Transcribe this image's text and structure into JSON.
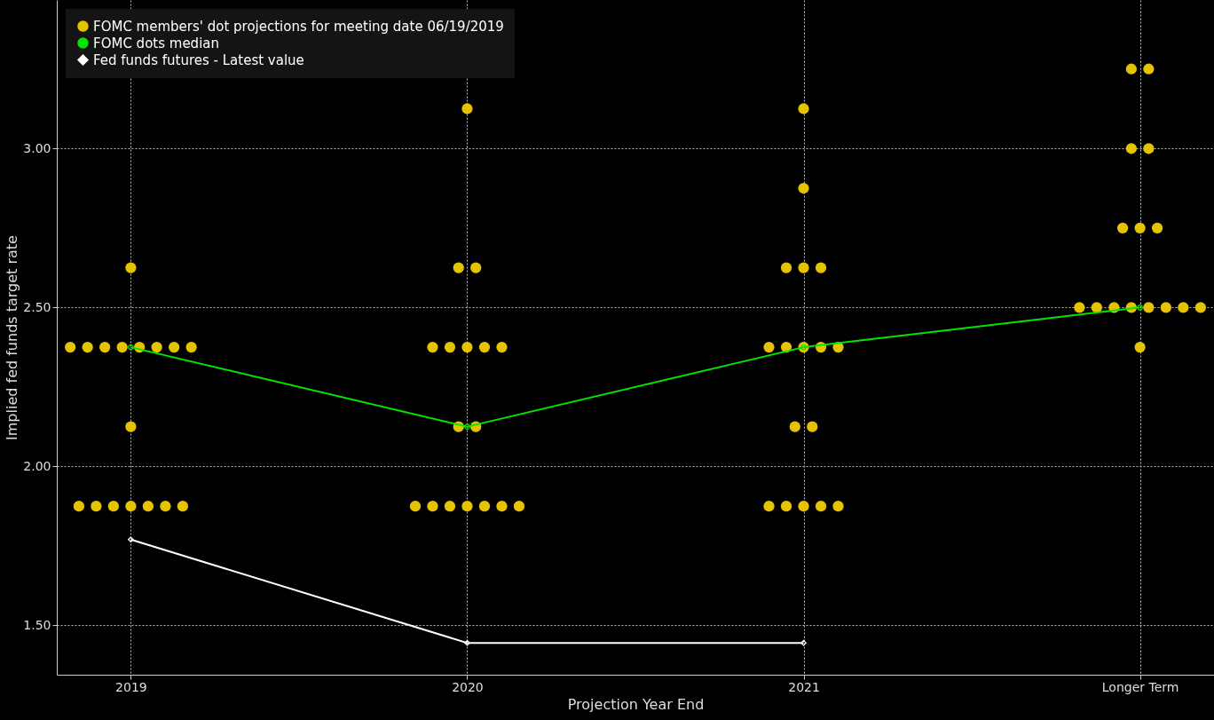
{
  "chart_data": {
    "type": "scatter",
    "xlabel": "Projection Year End",
    "ylabel": "Implied fed funds target rate",
    "categories": [
      "2019",
      "2020",
      "2021",
      "Longer Term"
    ],
    "ylim": [
      1.345,
      3.467
    ],
    "yticks": [
      {
        "value": 1.5,
        "label": "1.50"
      },
      {
        "value": 2,
        "label": "2.00"
      },
      {
        "value": 2.5,
        "label": "2.50"
      },
      {
        "value": 3,
        "label": "3.00"
      }
    ],
    "grid": true,
    "legend": "top left",
    "series": [
      {
        "name": "FOMC members' dot projections for meeting date 06/19/2019",
        "type": "scatter",
        "marker": "circle",
        "color": "#e6c300",
        "values": [
          2.625,
          3.125,
          3.125,
          3.25
        ]
      },
      {
        "type": "scatter",
        "marker": "circle",
        "color": "#e6c300",
        "values": [
          2.375,
          2.625,
          2.875,
          3.25
        ]
      },
      {
        "type": "scatter",
        "marker": "circle",
        "color": "#e6c300",
        "values": [
          2.375,
          2.625,
          2.625,
          3.0
        ]
      },
      {
        "type": "scatter",
        "marker": "circle",
        "color": "#e6c300",
        "values": [
          2.375,
          2.375,
          2.625,
          3.0
        ]
      },
      {
        "type": "scatter",
        "marker": "circle",
        "color": "#e6c300",
        "values": [
          2.375,
          2.375,
          2.625,
          2.75
        ]
      },
      {
        "type": "scatter",
        "marker": "circle",
        "color": "#e6c300",
        "values": [
          2.375,
          2.375,
          2.375,
          2.75
        ]
      },
      {
        "type": "scatter",
        "marker": "circle",
        "color": "#e6c300",
        "values": [
          2.375,
          2.375,
          2.375,
          2.75
        ]
      },
      {
        "type": "scatter",
        "marker": "circle",
        "color": "#e6c300",
        "values": [
          2.375,
          2.375,
          2.375,
          2.5
        ]
      },
      {
        "type": "scatter",
        "marker": "circle",
        "color": "#e6c300",
        "values": [
          2.375,
          2.125,
          2.375,
          2.5
        ]
      },
      {
        "type": "scatter",
        "marker": "circle",
        "color": "#e6c300",
        "values": [
          2.125,
          2.125,
          2.375,
          2.5
        ]
      },
      {
        "type": "scatter",
        "marker": "circle",
        "color": "#e6c300",
        "values": [
          1.875,
          1.875,
          2.125,
          2.5
        ]
      },
      {
        "type": "scatter",
        "marker": "circle",
        "color": "#e6c300",
        "values": [
          1.875,
          1.875,
          2.125,
          2.5
        ]
      },
      {
        "type": "scatter",
        "marker": "circle",
        "color": "#e6c300",
        "values": [
          1.875,
          1.875,
          1.875,
          2.5
        ]
      },
      {
        "type": "scatter",
        "marker": "circle",
        "color": "#e6c300",
        "values": [
          1.875,
          1.875,
          1.875,
          2.5
        ]
      },
      {
        "type": "scatter",
        "marker": "circle",
        "color": "#e6c300",
        "values": [
          1.875,
          1.875,
          1.875,
          2.5
        ]
      },
      {
        "type": "scatter",
        "marker": "circle",
        "color": "#e6c300",
        "values": [
          1.875,
          1.875,
          1.875,
          2.375
        ]
      },
      {
        "type": "scatter",
        "marker": "circle",
        "color": "#e6c300",
        "values": [
          1.875,
          1.875,
          1.875,
          null
        ]
      },
      {
        "name": "FOMC dots median",
        "type": "line",
        "marker": "circle",
        "color": "#00e600",
        "values": [
          2.375,
          2.125,
          2.375,
          2.5
        ]
      },
      {
        "name": "Fed funds futures - Latest value",
        "type": "line",
        "marker": "diamond",
        "color": "#ffffff",
        "values": [
          1.77,
          1.445,
          1.445,
          null
        ]
      }
    ]
  }
}
